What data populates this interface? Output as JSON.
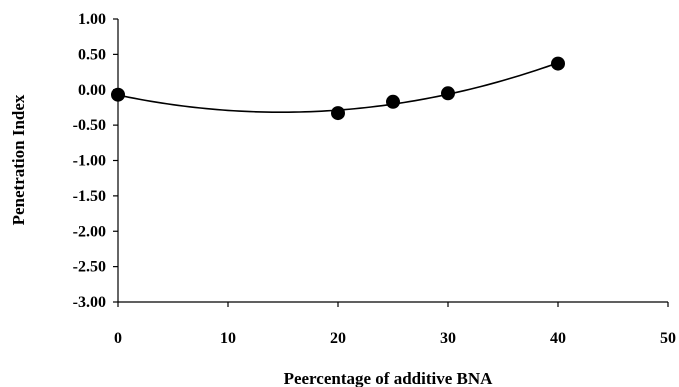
{
  "chart_data": {
    "type": "scatter",
    "title": "",
    "xlabel": "Peercentage of additive BNA",
    "ylabel": "Penetration Index",
    "xlim": [
      0,
      50
    ],
    "ylim": [
      -3.0,
      1.0
    ],
    "x_ticks": [
      0,
      10,
      20,
      30,
      40,
      50
    ],
    "x_tick_labels": [
      "0",
      "10",
      "20",
      "30",
      "40",
      "50"
    ],
    "y_ticks": [
      1.0,
      0.5,
      0.0,
      -0.5,
      -1.0,
      -1.5,
      -2.0,
      -2.5,
      -3.0
    ],
    "y_tick_labels": [
      "1.00",
      "0.50",
      "0.00",
      "-0.50",
      "-1.00",
      "-1.50",
      "-2.00",
      "-2.50",
      "-3.00"
    ],
    "grid": false,
    "legend": "none",
    "series": [
      {
        "points": [
          {
            "x": 0,
            "y": -0.07
          },
          {
            "x": 20,
            "y": -0.33
          },
          {
            "x": 25,
            "y": -0.17
          },
          {
            "x": 30,
            "y": -0.05
          },
          {
            "x": 40,
            "y": 0.37
          }
        ],
        "marker_color": "#000000"
      }
    ],
    "trendline": {
      "type": "polynomial",
      "order": 2,
      "x_range": [
        0,
        40
      ],
      "color": "#000000"
    }
  }
}
